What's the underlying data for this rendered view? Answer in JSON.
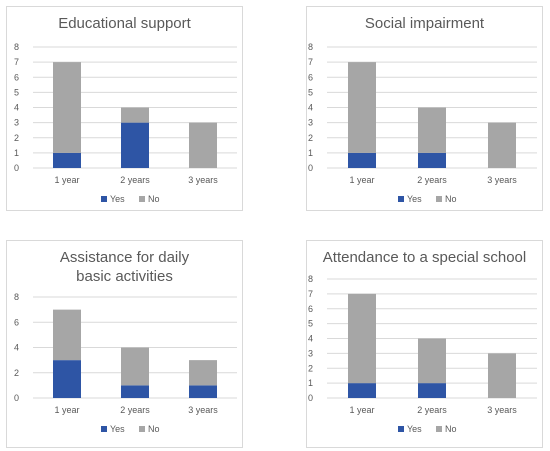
{
  "colors": {
    "yes": "#2e55a5",
    "no": "#a6a6a6",
    "grid": "#d9d9d9",
    "text": "#595959"
  },
  "chart_data": [
    {
      "type": "bar",
      "stacked": true,
      "title": "Educational support",
      "categories": [
        "1 year",
        "2 years",
        "3 years"
      ],
      "series": [
        {
          "name": "Yes",
          "values": [
            1,
            3,
            0
          ]
        },
        {
          "name": "No",
          "values": [
            6,
            1,
            3
          ]
        }
      ],
      "ylim": [
        0,
        8
      ],
      "yticks": [
        "0",
        "1",
        "2",
        "3",
        "4",
        "5",
        "6",
        "7",
        "8"
      ],
      "grid": true,
      "legend": "bottom"
    },
    {
      "type": "bar",
      "stacked": true,
      "title": "Social impairment",
      "categories": [
        "1 year",
        "2 years",
        "3 years"
      ],
      "series": [
        {
          "name": "Yes",
          "values": [
            1,
            1,
            0
          ]
        },
        {
          "name": "No",
          "values": [
            6,
            3,
            3
          ]
        }
      ],
      "ylim": [
        0,
        8
      ],
      "yticks": [
        "0",
        "1",
        "2",
        "3",
        "4",
        "5",
        "6",
        "7",
        "8"
      ],
      "grid": true,
      "legend": "bottom"
    },
    {
      "type": "bar",
      "stacked": true,
      "title": "Assistance for daily basic activities",
      "categories": [
        "1 year",
        "2 years",
        "3 years"
      ],
      "series": [
        {
          "name": "Yes",
          "values": [
            3,
            1,
            1
          ]
        },
        {
          "name": "No",
          "values": [
            4,
            3,
            2
          ]
        }
      ],
      "ylim": [
        0,
        8
      ],
      "yticks": [
        "0",
        "2",
        "4",
        "6",
        "8"
      ],
      "grid": true,
      "legend": "bottom"
    },
    {
      "type": "bar",
      "stacked": true,
      "title": "Attendance to a special school",
      "categories": [
        "1 year",
        "2 years",
        "3 years"
      ],
      "series": [
        {
          "name": "Yes",
          "values": [
            1,
            1,
            0
          ]
        },
        {
          "name": "No",
          "values": [
            6,
            3,
            3
          ]
        }
      ],
      "ylim": [
        0,
        8
      ],
      "yticks": [
        "0",
        "1",
        "2",
        "3",
        "4",
        "5",
        "6",
        "7",
        "8"
      ],
      "grid": true,
      "legend": "bottom"
    }
  ]
}
